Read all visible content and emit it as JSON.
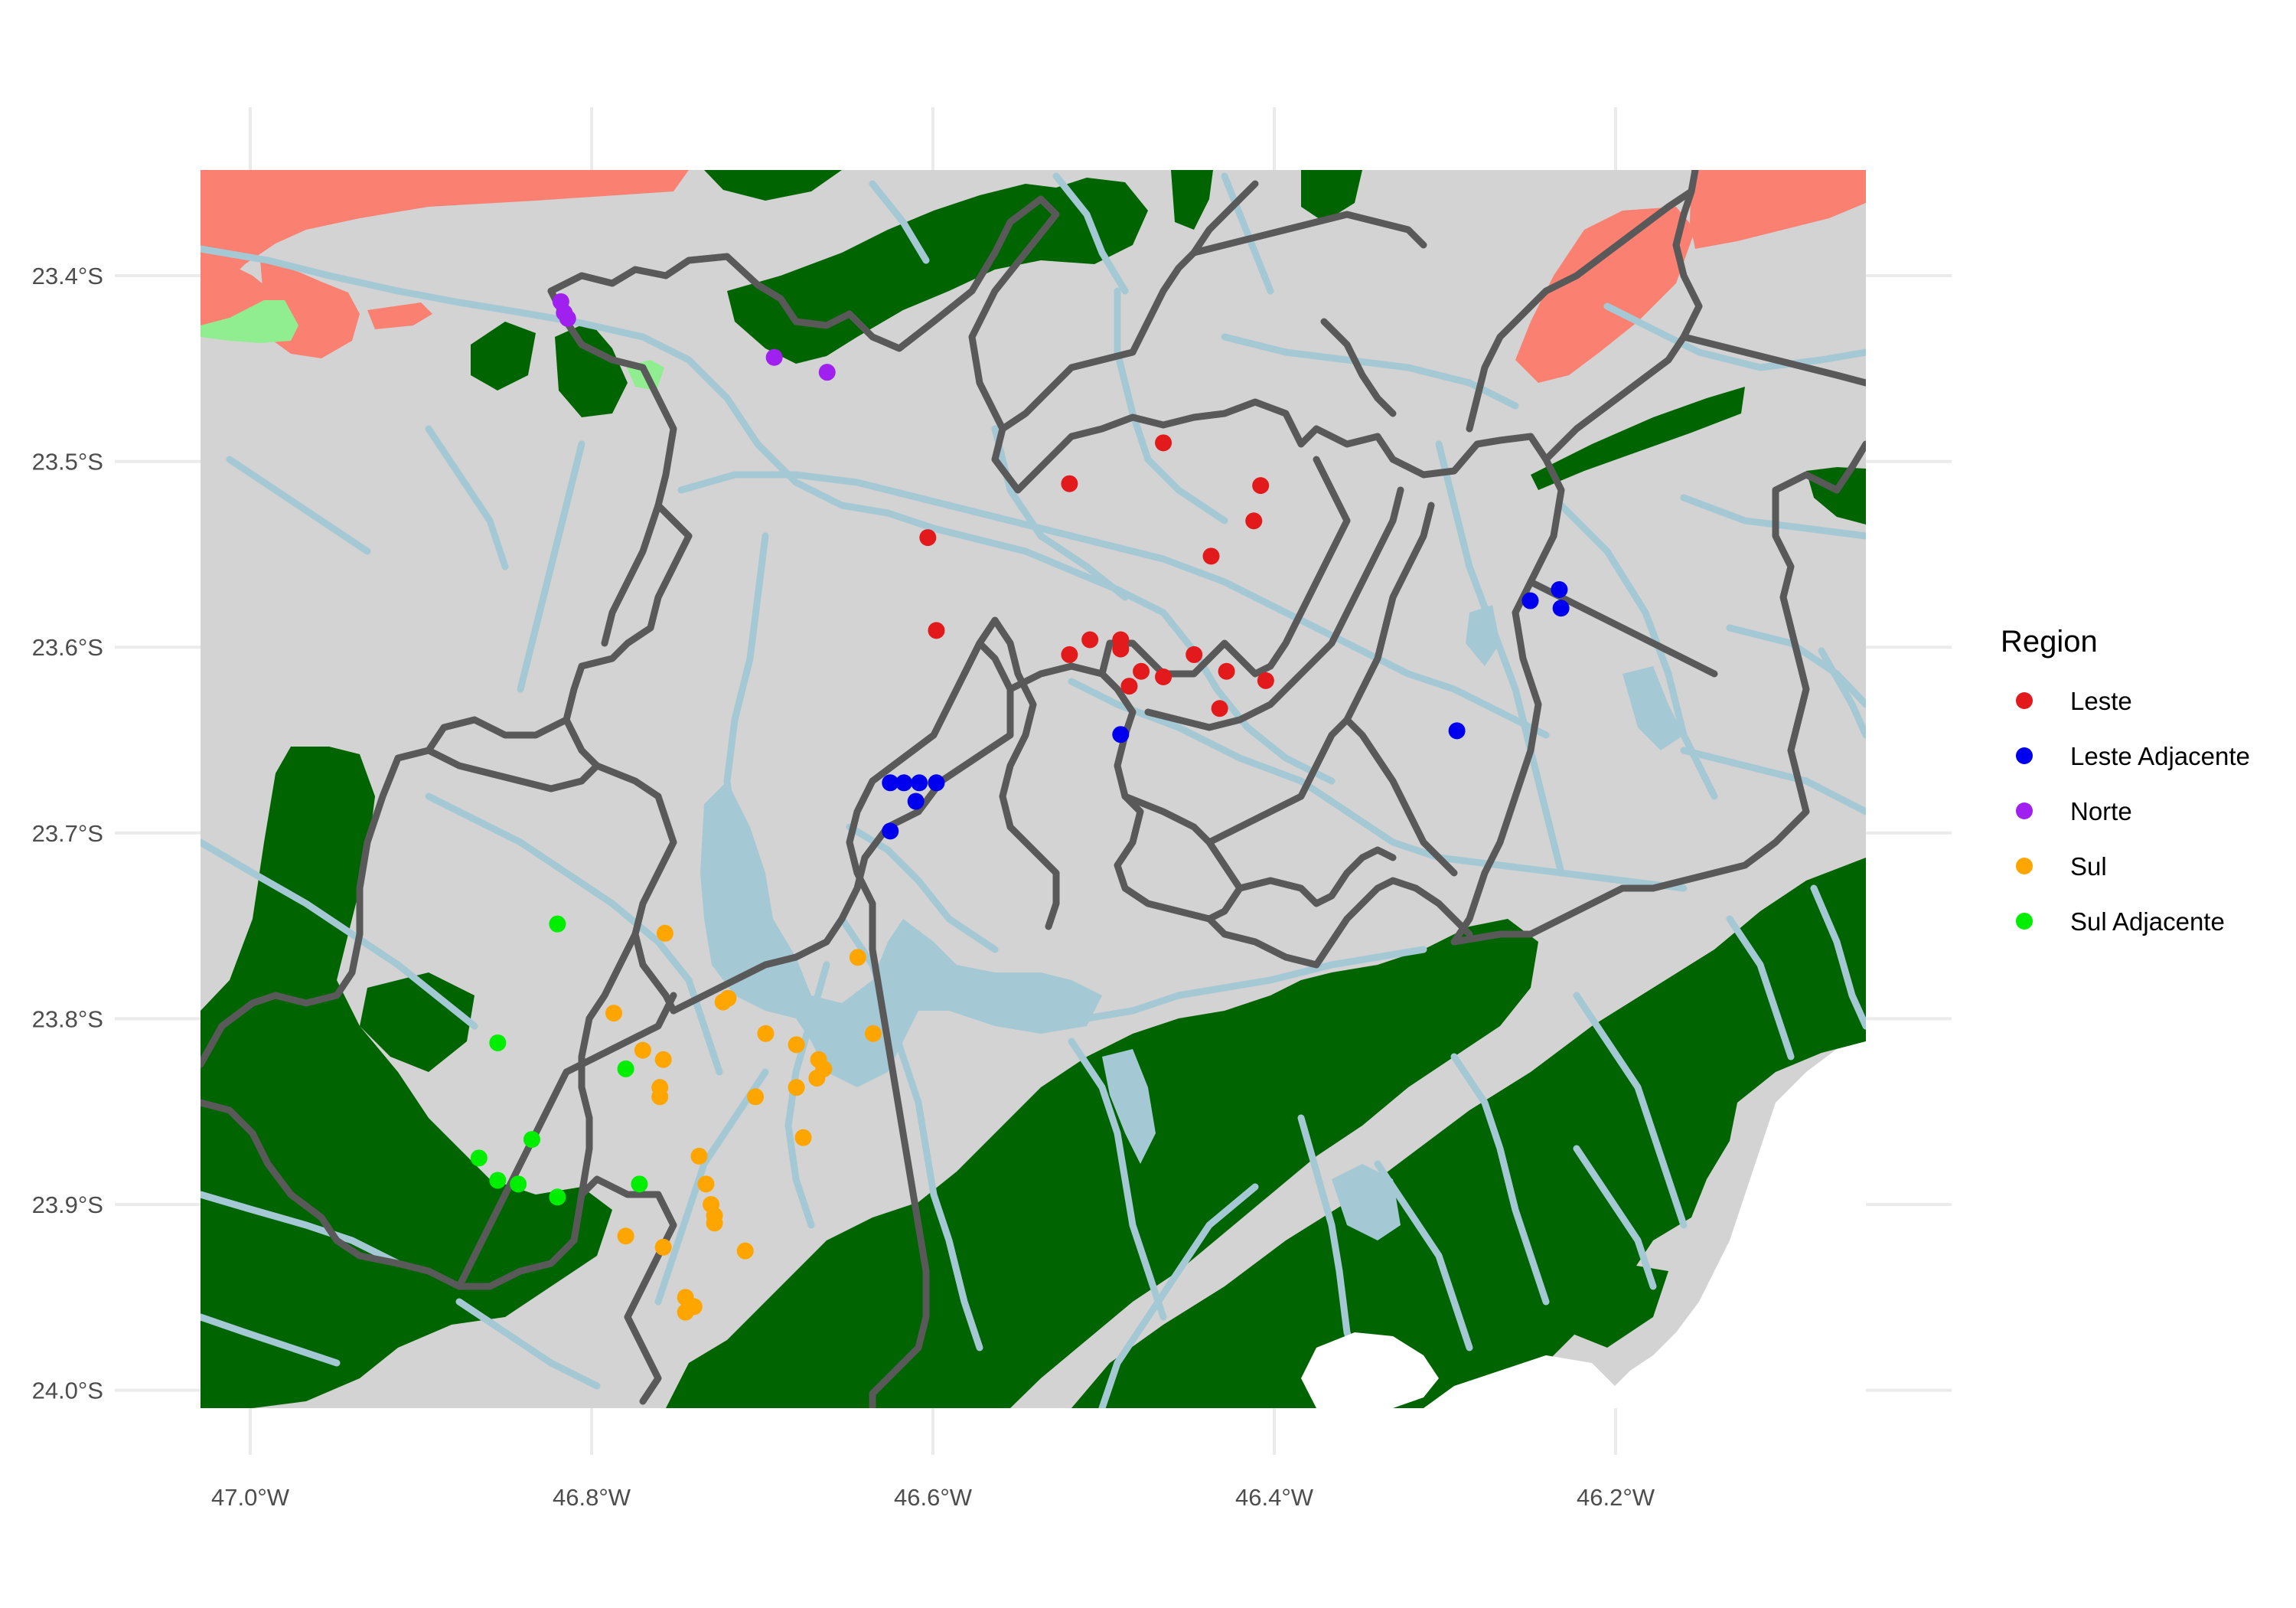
{
  "chart_data": {
    "type": "scatter",
    "title": "",
    "xlabel": "",
    "ylabel": "",
    "xlim": [
      -47.05,
      -45.8
    ],
    "ylim": [
      -24.05,
      -23.3
    ],
    "x_ticks": [
      {
        "value": -47.0,
        "label": "47.0°W"
      },
      {
        "value": -46.8,
        "label": "46.8°W"
      },
      {
        "value": -46.6,
        "label": "46.6°W"
      },
      {
        "value": -46.4,
        "label": "46.4°W"
      },
      {
        "value": -46.2,
        "label": "46.2°W"
      }
    ],
    "y_ticks": [
      {
        "value": -23.4,
        "label": "23.4°S"
      },
      {
        "value": -23.5,
        "label": "23.5°S"
      },
      {
        "value": -23.6,
        "label": "23.6°S"
      },
      {
        "value": -23.7,
        "label": "23.7°S"
      },
      {
        "value": -23.8,
        "label": "23.8°S"
      },
      {
        "value": -23.9,
        "label": "23.9°S"
      },
      {
        "value": -24.0,
        "label": "24.0°S"
      }
    ],
    "grid": true,
    "legend": {
      "title": "Region",
      "placement": "right"
    },
    "series": [
      {
        "name": "Leste",
        "color": "#e31a1c",
        "points": [
          [
            -46.465,
            -23.49
          ],
          [
            -46.52,
            -23.512
          ],
          [
            -46.408,
            -23.513
          ],
          [
            -46.412,
            -23.532
          ],
          [
            -46.603,
            -23.541
          ],
          [
            -46.437,
            -23.551
          ],
          [
            -46.598,
            -23.591
          ],
          [
            -46.52,
            -23.604
          ],
          [
            -46.508,
            -23.596
          ],
          [
            -46.49,
            -23.596
          ],
          [
            -46.49,
            -23.601
          ],
          [
            -46.447,
            -23.604
          ],
          [
            -46.478,
            -23.613
          ],
          [
            -46.465,
            -23.616
          ],
          [
            -46.428,
            -23.613
          ],
          [
            -46.485,
            -23.621
          ],
          [
            -46.405,
            -23.618
          ],
          [
            -46.432,
            -23.633
          ]
        ]
      },
      {
        "name": "Leste Adjacente",
        "color": "#0000ee",
        "points": [
          [
            -46.233,
            -23.569
          ],
          [
            -46.25,
            -23.575
          ],
          [
            -46.232,
            -23.579
          ],
          [
            -46.293,
            -23.645
          ],
          [
            -46.49,
            -23.647
          ],
          [
            -46.625,
            -23.673
          ],
          [
            -46.617,
            -23.673
          ],
          [
            -46.608,
            -23.673
          ],
          [
            -46.598,
            -23.673
          ],
          [
            -46.61,
            -23.683
          ],
          [
            -46.625,
            -23.699
          ]
        ]
      },
      {
        "name": "Norte",
        "color": "#a020f0",
        "points": [
          [
            -46.818,
            -23.414
          ],
          [
            -46.816,
            -23.42
          ],
          [
            -46.814,
            -23.423
          ],
          [
            -46.693,
            -23.444
          ],
          [
            -46.662,
            -23.452
          ]
        ]
      },
      {
        "name": "Sul",
        "color": "#ffa500",
        "points": [
          [
            -46.757,
            -23.754
          ],
          [
            -46.644,
            -23.767
          ],
          [
            -46.787,
            -23.797
          ],
          [
            -46.72,
            -23.789
          ],
          [
            -46.723,
            -23.791
          ],
          [
            -46.698,
            -23.808
          ],
          [
            -46.68,
            -23.814
          ],
          [
            -46.635,
            -23.808
          ],
          [
            -46.77,
            -23.817
          ],
          [
            -46.758,
            -23.822
          ],
          [
            -46.667,
            -23.822
          ],
          [
            -46.664,
            -23.827
          ],
          [
            -46.668,
            -23.832
          ],
          [
            -46.76,
            -23.837
          ],
          [
            -46.68,
            -23.837
          ],
          [
            -46.76,
            -23.842
          ],
          [
            -46.704,
            -23.842
          ],
          [
            -46.676,
            -23.864
          ],
          [
            -46.737,
            -23.874
          ],
          [
            -46.733,
            -23.889
          ],
          [
            -46.73,
            -23.9
          ],
          [
            -46.728,
            -23.906
          ],
          [
            -46.728,
            -23.91
          ],
          [
            -46.78,
            -23.917
          ],
          [
            -46.758,
            -23.923
          ],
          [
            -46.71,
            -23.925
          ],
          [
            -46.745,
            -23.95
          ],
          [
            -46.74,
            -23.955
          ],
          [
            -46.745,
            -23.958
          ]
        ]
      },
      {
        "name": "Sul Adjacente",
        "color": "#00ee00",
        "points": [
          [
            -46.82,
            -23.749
          ],
          [
            -46.855,
            -23.813
          ],
          [
            -46.78,
            -23.827
          ],
          [
            -46.835,
            -23.865
          ],
          [
            -46.866,
            -23.875
          ],
          [
            -46.855,
            -23.887
          ],
          [
            -46.843,
            -23.889
          ],
          [
            -46.772,
            -23.889
          ],
          [
            -46.82,
            -23.896
          ]
        ]
      }
    ]
  }
}
